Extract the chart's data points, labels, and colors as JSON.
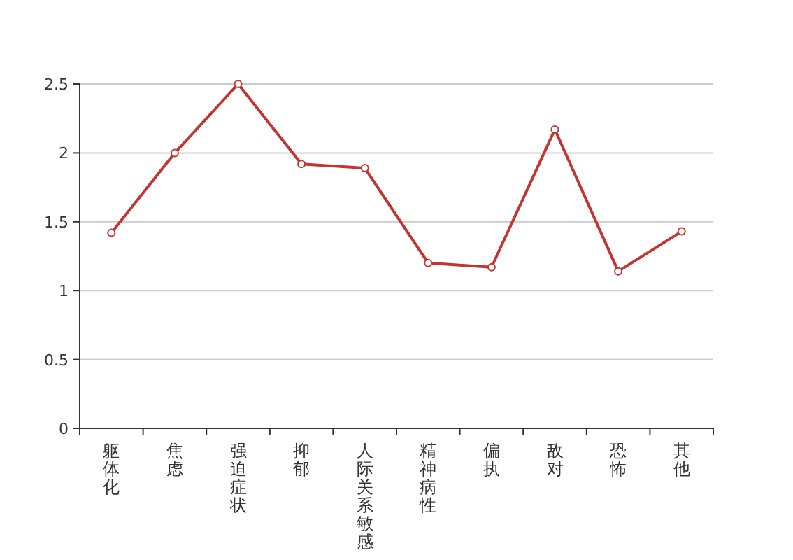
{
  "chart_data": {
    "type": "line",
    "categories": [
      "躯体化",
      "焦虑",
      "强迫症状",
      "抑郁",
      "人际关系敏感",
      "精神病性",
      "偏执",
      "敌对",
      "恐怖",
      "其他"
    ],
    "series": [
      {
        "color": "#c23531",
        "values": [
          1.42,
          2.0,
          2.5,
          1.92,
          1.89,
          1.2,
          1.17,
          2.17,
          1.14,
          1.43
        ]
      }
    ],
    "ylim": [
      0,
      2.5
    ],
    "yticks": [
      0,
      0.5,
      1,
      1.5,
      2,
      2.5
    ],
    "grid": "y",
    "marker": "circle",
    "line_style": "solid"
  }
}
